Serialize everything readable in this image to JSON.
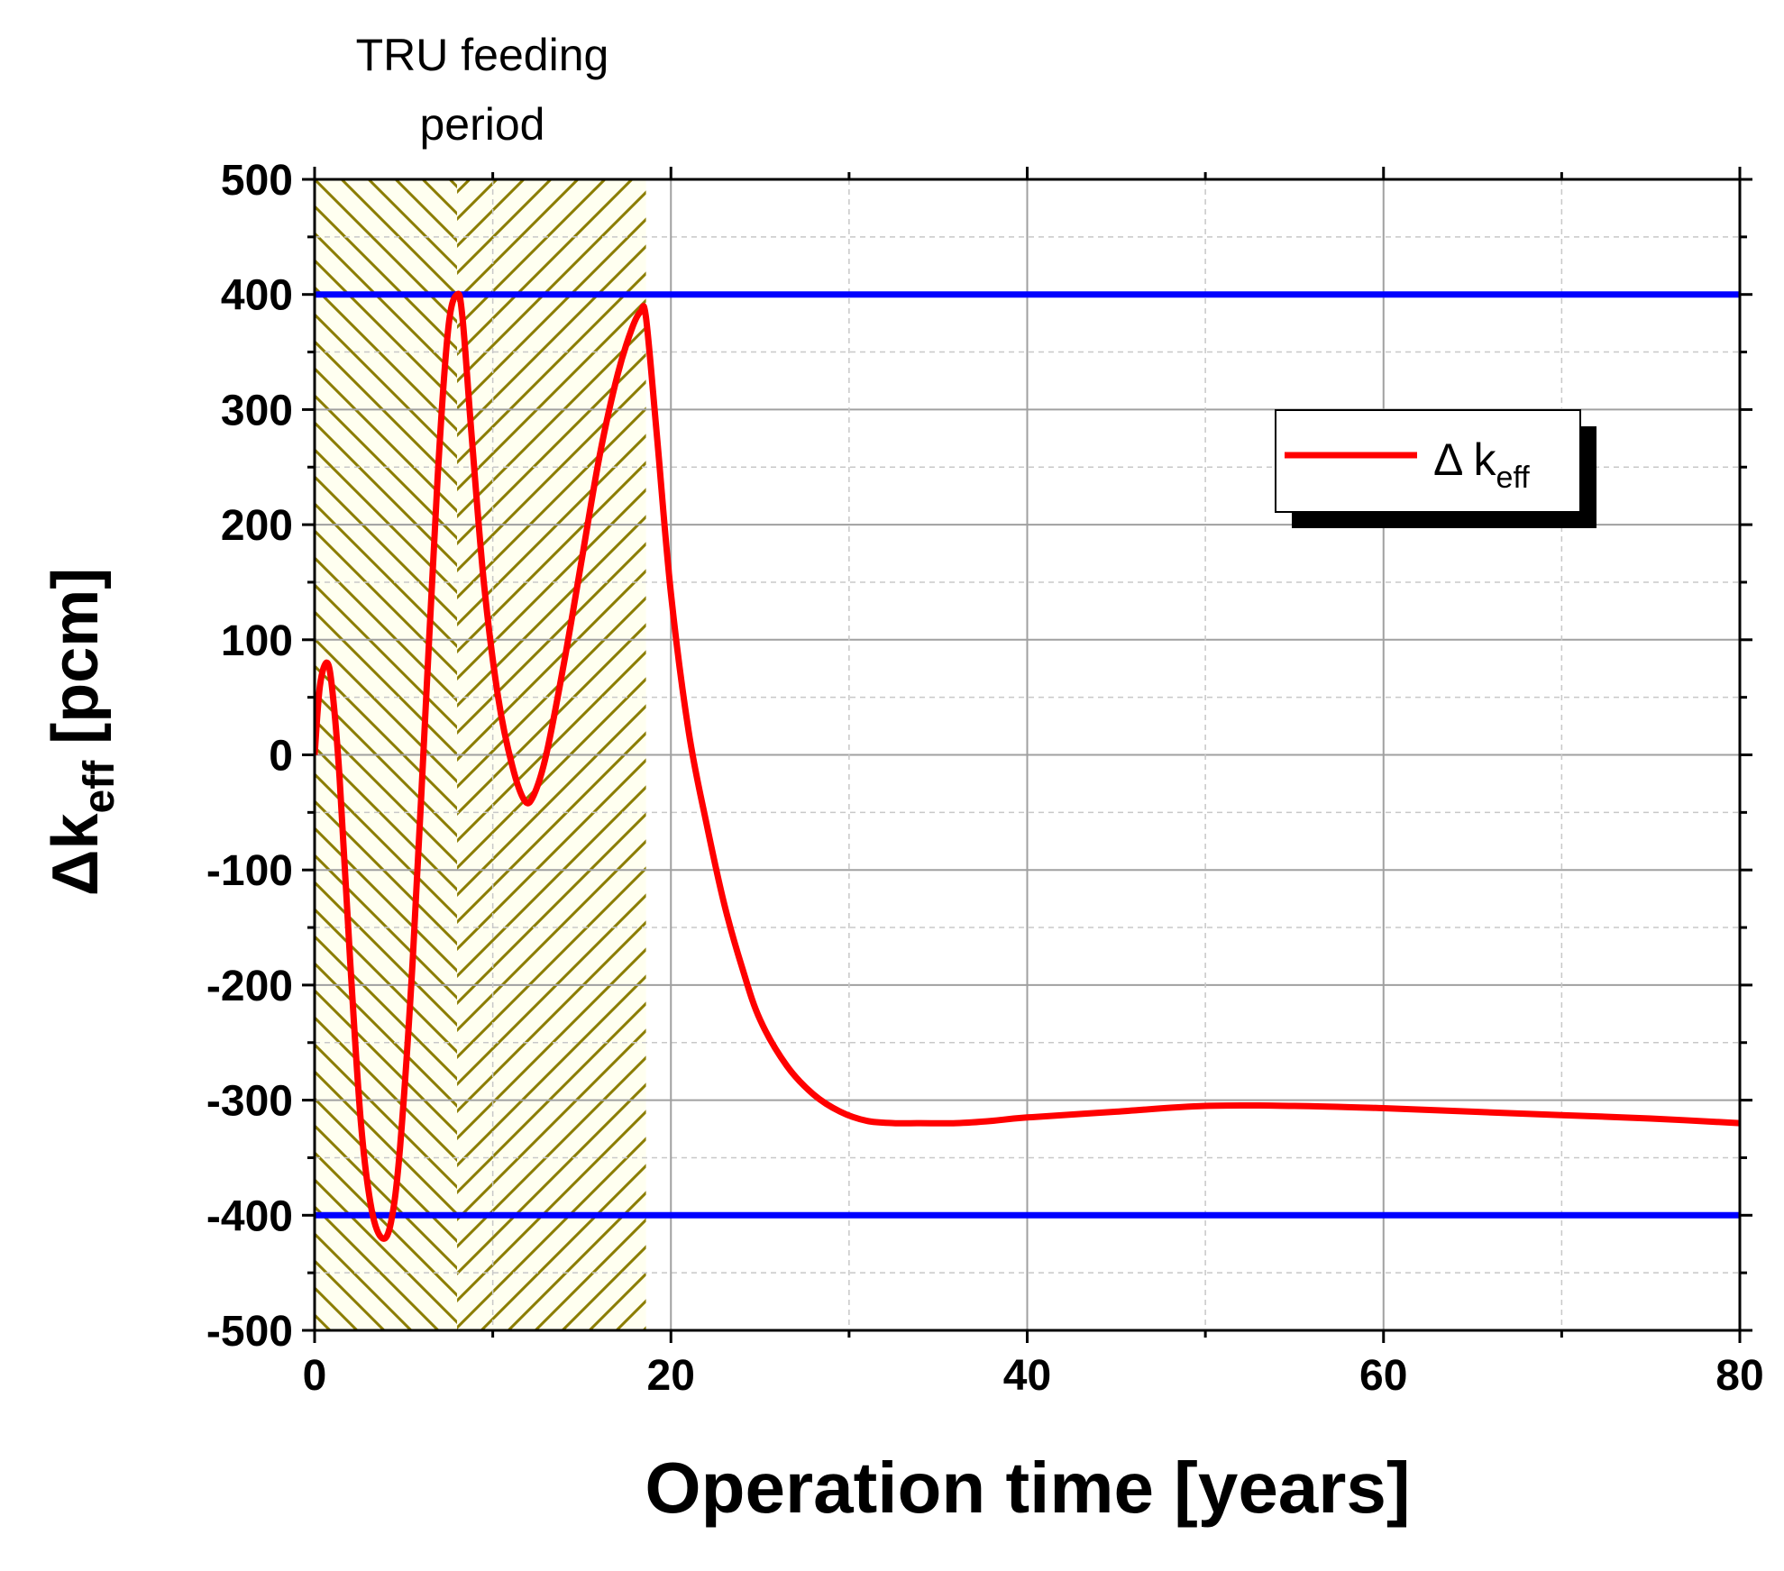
{
  "chart_data": {
    "type": "line",
    "title": "",
    "xlabel": "Operation time [years]",
    "ylabel_main": "Δk",
    "ylabel_sub": "eff",
    "ylabel_unit": "[pcm]",
    "xlim": [
      0,
      80
    ],
    "ylim": [
      -500,
      500
    ],
    "x_ticks": [
      0,
      20,
      40,
      60,
      80
    ],
    "y_ticks": [
      500,
      400,
      300,
      200,
      100,
      0,
      -100,
      -200,
      -300,
      -400,
      -500
    ],
    "grid": true,
    "legend_position": "upper-right",
    "annotation": {
      "line1": "TRU feeding",
      "line2": "period",
      "x_range": [
        0,
        18.6
      ]
    },
    "series": [
      {
        "name": "Δ k",
        "name_sub": "eff",
        "color": "#ff0000",
        "x": [
          0,
          0.3,
          0.7,
          1.0,
          1.4,
          2.0,
          2.6,
          3.2,
          3.8,
          4.3,
          4.8,
          5.5,
          6.2,
          6.9,
          7.5,
          8.0,
          8.3,
          8.8,
          9.5,
          10.3,
          11.1,
          11.8,
          12.3,
          13.0,
          14.0,
          15.0,
          16.0,
          17.0,
          17.8,
          18.3,
          18.6,
          19.2,
          20.0,
          21.0,
          22.0,
          23.0,
          24.0,
          25.0,
          26.5,
          28.0,
          29.5,
          31.0,
          32.5,
          34.0,
          36.0,
          38.0,
          40.0,
          45.0,
          50.0,
          55.0,
          60.0,
          65.0,
          70.0,
          75.0,
          80.0
        ],
        "y": [
          0,
          60,
          80,
          55,
          -20,
          -180,
          -320,
          -395,
          -420,
          -405,
          -340,
          -180,
          30,
          240,
          370,
          400,
          380,
          280,
          150,
          50,
          -10,
          -40,
          -35,
          0,
          80,
          170,
          260,
          330,
          370,
          385,
          380,
          280,
          140,
          20,
          -60,
          -130,
          -185,
          -230,
          -270,
          -295,
          -310,
          -318,
          -320,
          -320,
          -320,
          -318,
          -315,
          -310,
          -305,
          -305,
          -307,
          -310,
          -313,
          -316,
          -320
        ]
      }
    ],
    "reference_lines": [
      {
        "y": 400,
        "color": "#0000ff"
      },
      {
        "y": -400,
        "color": "#0000ff"
      }
    ],
    "colors": {
      "hatch": "#8b7d00",
      "hatch_bg": "#fffff0",
      "grid": "#a0a0a0",
      "legend_shadow": "#000000"
    }
  }
}
